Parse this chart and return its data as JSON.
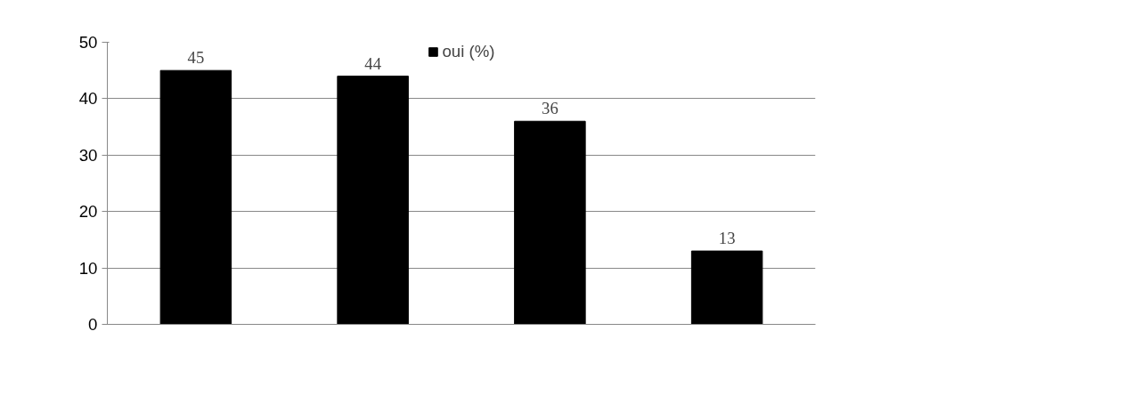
{
  "chart_data": {
    "type": "bar",
    "categories": [
      null,
      null,
      null,
      null
    ],
    "series": [
      {
        "name": "oui (%)",
        "color": "#000000",
        "values": [
          45,
          44,
          36,
          13
        ]
      }
    ],
    "ylim": [
      0,
      50
    ],
    "yticks": [
      0,
      10,
      20,
      30,
      40,
      50
    ],
    "grid": "y",
    "legend": "top",
    "data_labels": true
  }
}
